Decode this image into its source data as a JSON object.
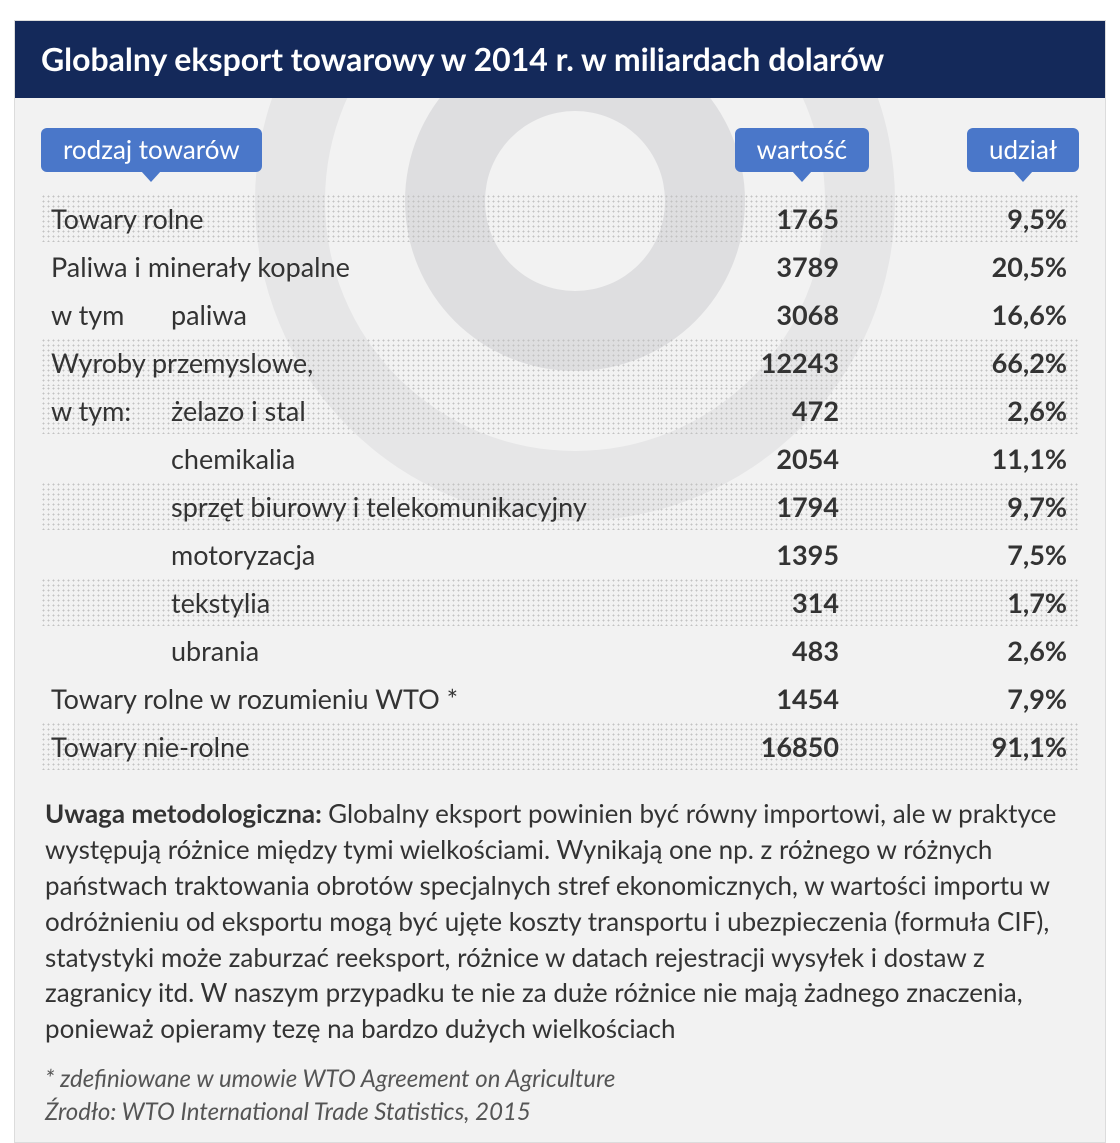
{
  "title": "Globalny eksport towarowy w 2014 r. w miliardach dolarów",
  "headers": {
    "category": "rodzaj towarów",
    "value": "wartość",
    "share": "udział"
  },
  "rows": [
    {
      "label": "Towary rolne",
      "lead": "",
      "indent": false,
      "value": "1765",
      "share": "9,5%",
      "dotted": true
    },
    {
      "label": "Paliwa i minerały kopalne",
      "lead": "",
      "indent": false,
      "value": "3789",
      "share": "20,5%",
      "dotted": false
    },
    {
      "label": "paliwa",
      "lead": "w tym",
      "indent": true,
      "value": "3068",
      "share": "16,6%",
      "dotted": false
    },
    {
      "label": "Wyroby przemyslowe,",
      "lead": "",
      "indent": false,
      "value": "12243",
      "share": "66,2%",
      "dotted": true
    },
    {
      "label": "żelazo i stal",
      "lead": "w tym:",
      "indent": true,
      "value": "472",
      "share": "2,6%",
      "dotted": true
    },
    {
      "label": "chemikalia",
      "lead": "",
      "indent": true,
      "value": "2054",
      "share": "11,1%",
      "dotted": false
    },
    {
      "label": "sprzęt biurowy i telekomunikacyjny",
      "lead": "",
      "indent": true,
      "value": "1794",
      "share": "9,7%",
      "dotted": true
    },
    {
      "label": "motoryzacja",
      "lead": "",
      "indent": true,
      "value": "1395",
      "share": "7,5%",
      "dotted": false
    },
    {
      "label": "tekstylia",
      "lead": "",
      "indent": true,
      "value": "314",
      "share": "1,7%",
      "dotted": true
    },
    {
      "label": "ubrania",
      "lead": "",
      "indent": true,
      "value": "483",
      "share": "2,6%",
      "dotted": false
    },
    {
      "label": "Towary rolne w rozumieniu WTO *",
      "lead": "",
      "indent": false,
      "value": "1454",
      "share": "7,9%",
      "dotted": false
    },
    {
      "label": "Towary nie-rolne",
      "lead": "",
      "indent": false,
      "value": "16850",
      "share": "91,1%",
      "dotted": true
    }
  ],
  "note_label": "Uwaga metodologiczna: ",
  "note_text": "Globalny eksport powinien być równy importowi, ale w praktyce występują różnice między tymi wielkościami. Wynikają one np. z różnego w różnych państwach traktowania obrotów specjalnych stref ekonomicznych, w wartości importu w odróżnieniu od eksportu mogą być ujęte koszty transportu i ubezpieczenia (formuła CIF), statystyki może zaburzać reeksport, różnice w datach rejestracji wysyłek i dostaw z zagranicy itd. W naszym przypadku te nie za duże różnice nie mają żadnego znaczenia, ponieważ opieramy tezę na bardzo dużych wielkościach",
  "footnote": "* zdefiniowane w umowie WTO Agreement on Agriculture",
  "source": "Źrodło: WTO International Trade Statistics, 2015",
  "colors": {
    "title_bg": "#14295a",
    "pill_bg": "#4a77c9",
    "card_bg": "#f2f2f2",
    "text": "#333333"
  }
}
